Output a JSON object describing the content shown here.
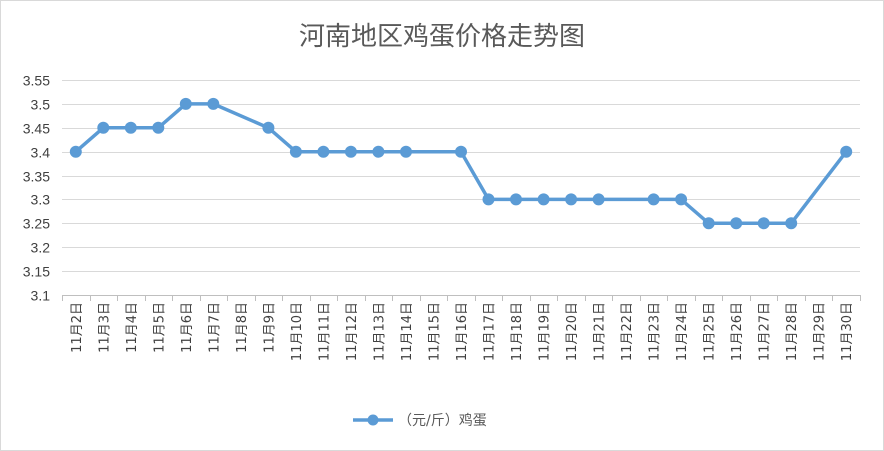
{
  "chart_data": {
    "type": "line",
    "title": "河南地区鸡蛋价格走势图",
    "xlabel": "",
    "ylabel": "",
    "ylim": [
      3.1,
      3.55
    ],
    "yticks": [
      "3.1",
      "3.15",
      "3.2",
      "3.25",
      "3.3",
      "3.35",
      "3.4",
      "3.45",
      "3.5",
      "3.55"
    ],
    "grid": true,
    "legend_position": "bottom",
    "categories": [
      "11月2日",
      "11月3日",
      "11月4日",
      "11月5日",
      "11月6日",
      "11月7日",
      "11月8日",
      "11月9日",
      "11月10日",
      "11月11日",
      "11月12日",
      "11月13日",
      "11月14日",
      "11月15日",
      "11月16日",
      "11月17日",
      "11月18日",
      "11月19日",
      "11月20日",
      "11月21日",
      "11月22日",
      "11月23日",
      "11月24日",
      "11月25日",
      "11月26日",
      "11月27日",
      "11月28日",
      "11月29日",
      "11月30日"
    ],
    "series": [
      {
        "name": "（元/斤）鸡蛋",
        "color": "#5b9bd5",
        "values": [
          3.4,
          3.45,
          3.45,
          3.45,
          3.5,
          3.5,
          null,
          3.45,
          3.4,
          3.4,
          3.4,
          3.4,
          3.4,
          null,
          3.4,
          3.3,
          3.3,
          3.3,
          3.3,
          3.3,
          null,
          3.3,
          3.3,
          3.25,
          3.25,
          3.25,
          3.25,
          null,
          3.4
        ]
      }
    ]
  }
}
